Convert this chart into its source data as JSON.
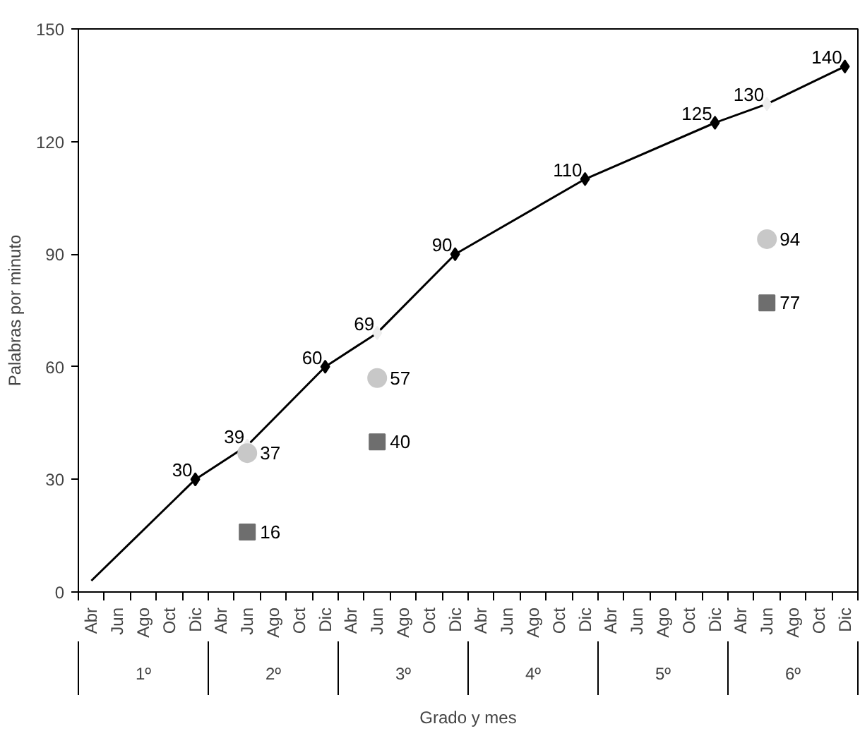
{
  "chart_data": {
    "type": "line",
    "xlabel": "Grado y mes",
    "ylabel": "Palabras por minuto",
    "categories": [
      "Abr",
      "Jun",
      "Ago",
      "Oct",
      "Dic",
      "Abr",
      "Jun",
      "Ago",
      "Oct",
      "Dic",
      "Abr",
      "Jun",
      "Ago",
      "Oct",
      "Dic",
      "Abr",
      "Jun",
      "Ago",
      "Oct",
      "Dic",
      "Abr",
      "Jun",
      "Ago",
      "Oct",
      "Dic",
      "Abr",
      "Jun",
      "Ago",
      "Oct",
      "Dic"
    ],
    "annotations": [
      "1º",
      "2º",
      "3º",
      "4º",
      "5º",
      "6º"
    ],
    "ylim": [
      0,
      150
    ],
    "yticks": [
      0,
      30,
      60,
      90,
      120,
      150
    ],
    "grid": false,
    "series": [
      {
        "color": "#000000",
        "marker": "diamond",
        "values": [
          3,
          null,
          null,
          null,
          30,
          null,
          39,
          null,
          null,
          60,
          null,
          69,
          null,
          null,
          90,
          null,
          null,
          null,
          null,
          110,
          null,
          null,
          null,
          null,
          125,
          null,
          130,
          null,
          null,
          140
        ],
        "colors": [
          null,
          null,
          null,
          null,
          "#000000",
          null,
          "#eeeeee",
          null,
          null,
          "#000000",
          null,
          "#eeeeee",
          null,
          null,
          "#000000",
          null,
          null,
          null,
          null,
          "#000000",
          null,
          null,
          null,
          null,
          "#000000",
          null,
          "#eeeeee",
          null,
          null,
          "#000000"
        ],
        "value_labels": [
          null,
          null,
          null,
          null,
          "30",
          null,
          "39",
          null,
          null,
          "60",
          null,
          "69",
          null,
          null,
          "90",
          null,
          null,
          null,
          null,
          "110",
          null,
          null,
          null,
          null,
          "125",
          null,
          "130",
          null,
          null,
          "140"
        ]
      },
      {
        "type": "scatter",
        "color": "#c8c8c8",
        "marker": "circle",
        "values": [
          null,
          null,
          null,
          null,
          null,
          null,
          37,
          null,
          null,
          null,
          null,
          57,
          null,
          null,
          null,
          null,
          null,
          null,
          null,
          null,
          null,
          null,
          null,
          null,
          null,
          null,
          94,
          null,
          null,
          null
        ],
        "value_labels": [
          null,
          null,
          null,
          null,
          null,
          null,
          "37",
          null,
          null,
          null,
          null,
          "57",
          null,
          null,
          null,
          null,
          null,
          null,
          null,
          null,
          null,
          null,
          null,
          null,
          null,
          null,
          "94",
          null,
          null,
          null
        ]
      },
      {
        "type": "scatter",
        "color": "#6e6e6e",
        "marker": "square",
        "values": [
          null,
          null,
          null,
          null,
          null,
          null,
          16,
          null,
          null,
          null,
          null,
          40,
          null,
          null,
          null,
          null,
          null,
          null,
          null,
          null,
          null,
          null,
          null,
          null,
          null,
          null,
          77,
          null,
          null,
          null
        ],
        "value_labels": [
          null,
          null,
          null,
          null,
          null,
          null,
          "16",
          null,
          null,
          null,
          null,
          "40",
          null,
          null,
          null,
          null,
          null,
          null,
          null,
          null,
          null,
          null,
          null,
          null,
          null,
          null,
          "77",
          null,
          null,
          null
        ]
      }
    ]
  }
}
